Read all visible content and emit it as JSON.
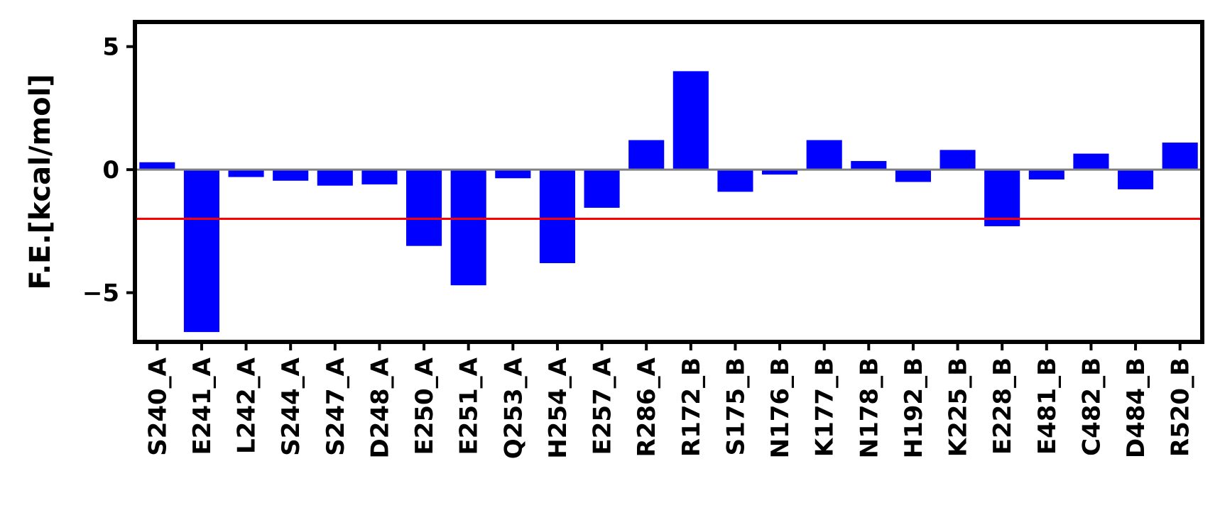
{
  "chart_data": {
    "type": "bar",
    "categories": [
      "S240_A",
      "E241_A",
      "L242_A",
      "S244_A",
      "S247_A",
      "D248_A",
      "E250_A",
      "E251_A",
      "Q253_A",
      "H254_A",
      "E257_A",
      "R286_A",
      "R172_B",
      "S175_B",
      "N176_B",
      "K177_B",
      "N178_B",
      "H192_B",
      "K225_B",
      "E228_B",
      "E481_B",
      "C482_B",
      "D484_B",
      "R520_B"
    ],
    "values": [
      0.3,
      -6.6,
      -0.3,
      -0.45,
      -0.65,
      -0.6,
      -3.1,
      -4.7,
      -0.35,
      -3.8,
      -1.55,
      1.2,
      4.0,
      -0.9,
      -0.2,
      1.2,
      0.35,
      -0.5,
      0.8,
      -2.3,
      -0.4,
      0.65,
      -0.8,
      1.1
    ],
    "title": "",
    "xlabel": "",
    "ylabel": "F.E.[kcal/mol]",
    "ylim": [
      -7,
      6
    ],
    "yticks": [
      5,
      0,
      -5
    ],
    "ytick_labels": [
      "5",
      "0",
      "−5"
    ],
    "bar_color": "#0000ff",
    "zero_line": {
      "value": 0,
      "color": "#808080"
    },
    "threshold_line": {
      "value": -2,
      "color": "#ff0000"
    },
    "grid": false
  }
}
